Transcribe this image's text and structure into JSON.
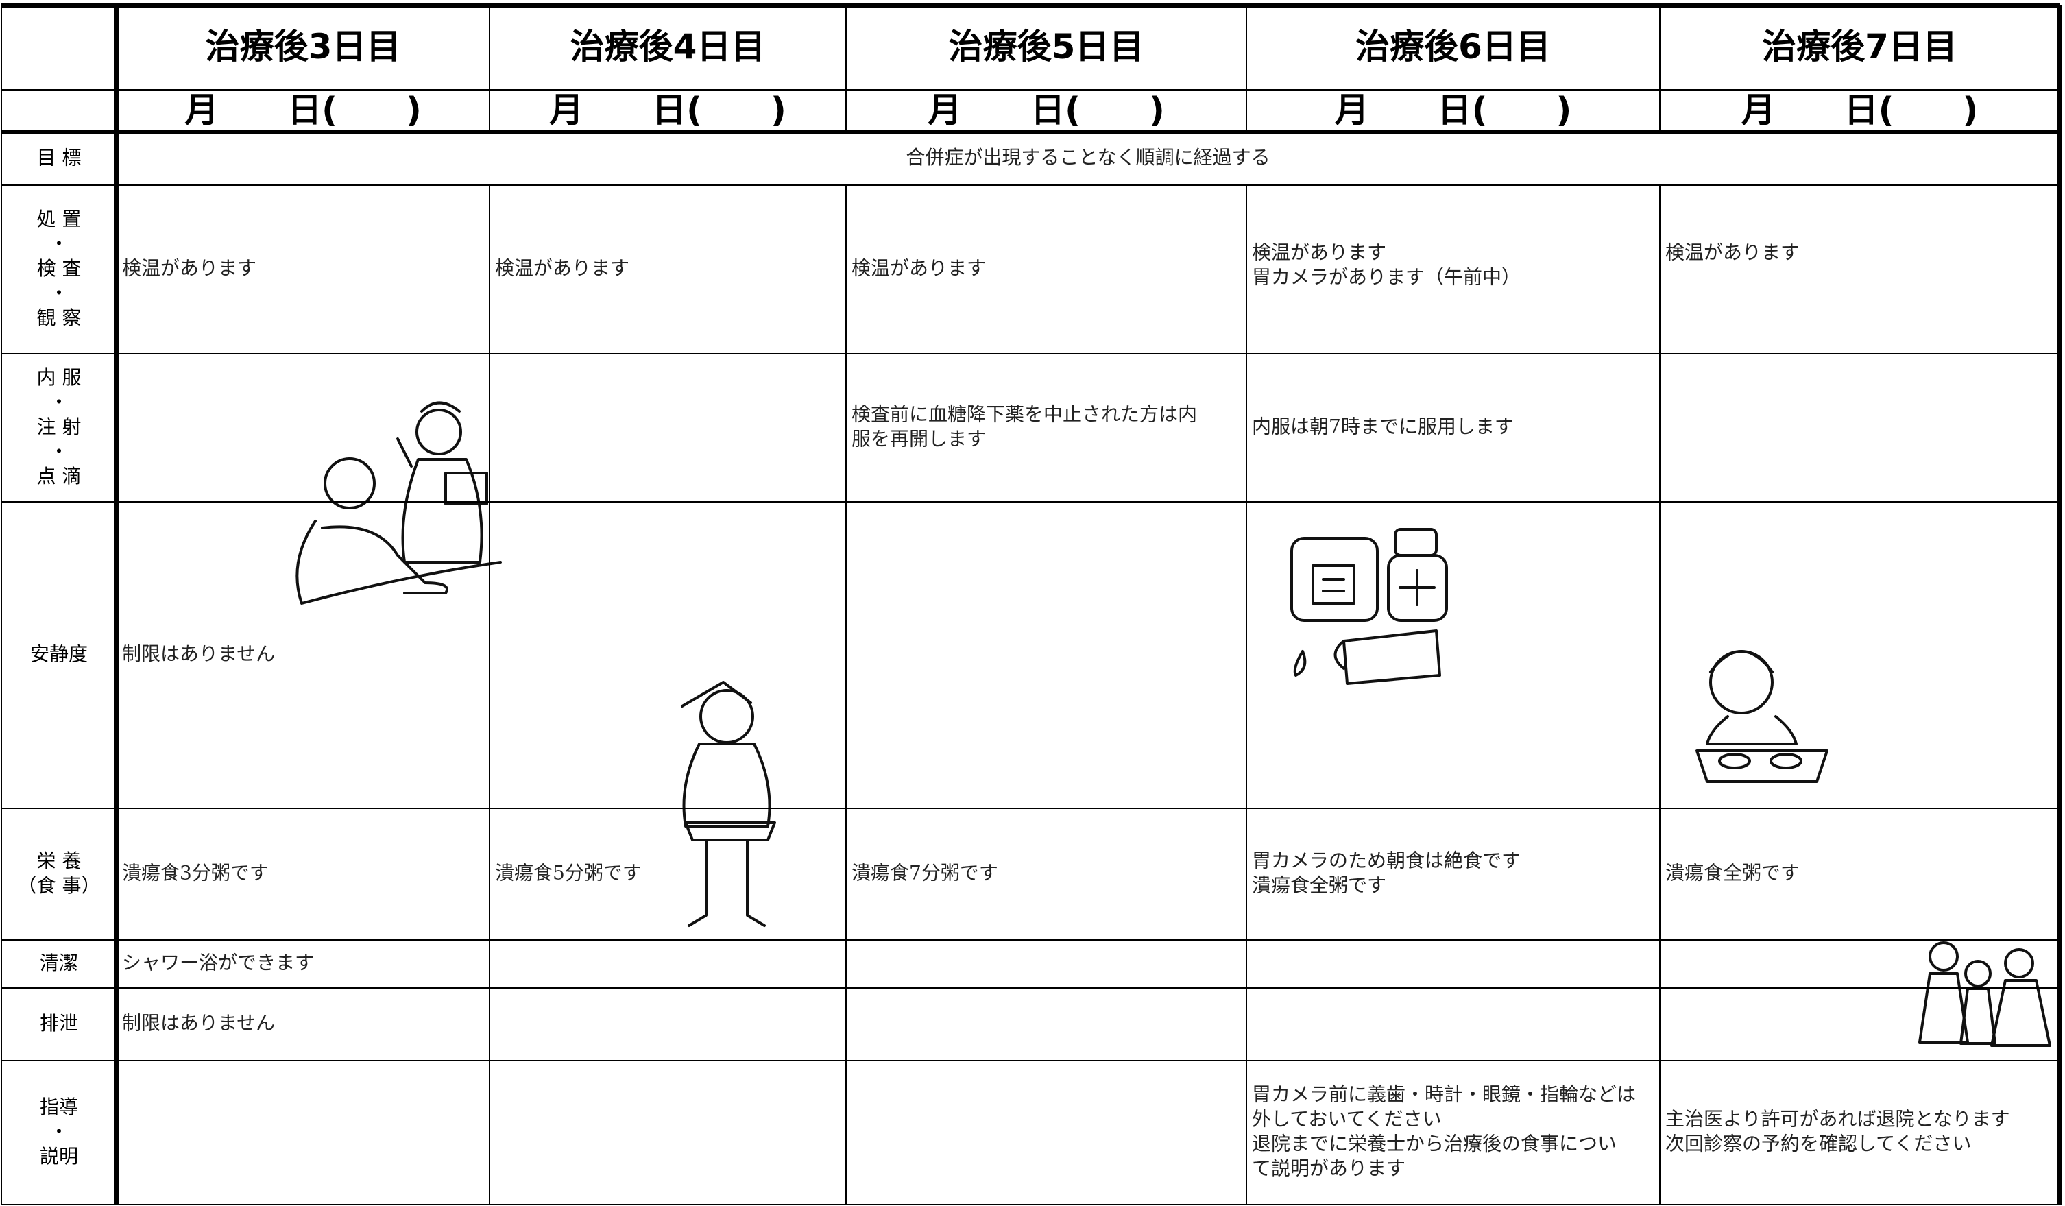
{
  "header": {
    "days": [
      "治療後3日目",
      "治療後4日目",
      "治療後5日目",
      "治療後6日目",
      "治療後7日目"
    ],
    "dates": [
      "月　　日(　　)",
      "月　　日(　　)",
      "月　　日(　　)",
      "月　　日(　　)",
      "月　　日(　　)"
    ]
  },
  "goal": {
    "label": [
      "目 標"
    ],
    "text": "合併症が出現することなく順調に経過する"
  },
  "rows": [
    {
      "label": [
        "処 置",
        "・",
        "検 査",
        "・",
        "観 察"
      ],
      "cells": [
        [
          "検温があります"
        ],
        [
          "検温があります"
        ],
        [
          "検温があります"
        ],
        [
          "検温があります",
          "胃カメラがあります（午前中）"
        ],
        [
          "検温があります"
        ]
      ]
    },
    {
      "label": [
        "内 服",
        "・",
        "注 射",
        "・",
        "点 滴"
      ],
      "cells": [
        null,
        null,
        [
          "検査前に血糖降下薬を中止された方は内",
          "服を再開します"
        ],
        [
          "内服は朝7時までに服用します"
        ],
        null
      ]
    },
    {
      "label": [
        "安静度"
      ],
      "cells": [
        [
          "制限はありません"
        ],
        null,
        null,
        null,
        null
      ]
    },
    {
      "label": [
        "栄 養",
        "（食 事）"
      ],
      "cells": [
        [
          "潰瘍食3分粥です"
        ],
        [
          "潰瘍食5分粥です"
        ],
        [
          "潰瘍食7分粥です"
        ],
        [
          "胃カメラのため朝食は絶食です",
          "潰瘍食全粥です"
        ],
        [
          "潰瘍食全粥です"
        ]
      ]
    },
    {
      "label": [
        "清潔"
      ],
      "cells": [
        [
          "シャワー浴ができます"
        ],
        null,
        null,
        null,
        null
      ]
    },
    {
      "label": [
        "排泄"
      ],
      "cells": [
        [
          "制限はありません"
        ],
        null,
        null,
        null,
        null
      ]
    },
    {
      "label": [
        "指導",
        "・",
        "説明"
      ],
      "cells": [
        null,
        null,
        null,
        [
          "胃カメラ前に義歯・時計・眼鏡・指輪などは",
          "外しておいてください",
          "退院までに栄養士から治療後の食事につい",
          "て説明があります"
        ],
        [
          "主治医より許可があれば退院となります",
          "次回診察の予約を確認してください"
        ]
      ]
    }
  ]
}
